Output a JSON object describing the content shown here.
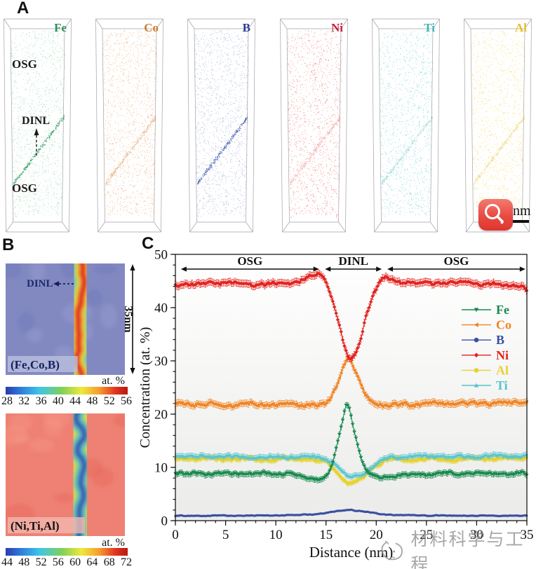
{
  "panel_a": {
    "letter": "A",
    "elements": [
      {
        "symbol": "Fe",
        "label_color": "#2f8f5b",
        "dot_color": "#8ed3aa",
        "band_color": "#1f9150",
        "band_opacity": 0.9
      },
      {
        "symbol": "Co",
        "label_color": "#cf7d2a",
        "dot_color": "#eba160",
        "band_color": "#d4761f",
        "band_opacity": 0.5
      },
      {
        "symbol": "B",
        "label_color": "#2c3c94",
        "dot_color": "#93a3d0",
        "band_color": "#2f4da5",
        "band_opacity": 0.9
      },
      {
        "symbol": "Ni",
        "label_color": "#c41f3a",
        "dot_color": "#ef6e68",
        "band_color": "#dd3a3a",
        "band_opacity": 0.35
      },
      {
        "symbol": "Ti",
        "label_color": "#3fb3b3",
        "dot_color": "#6fcdca",
        "band_color": "#2fa8a5",
        "band_opacity": 0.4
      },
      {
        "symbol": "Al",
        "label_color": "#e4bc2b",
        "dot_color": "#f4d757",
        "band_color": "#dfba22",
        "band_opacity": 0.5
      }
    ],
    "annotations": {
      "osg_top": "OSG",
      "dinl": "DINL",
      "osg_bottom": "OSG"
    },
    "scalebar_text": "50 nm"
  },
  "panel_b": {
    "letter": "B",
    "maps": [
      {
        "caption": "(Fe,Co,B)",
        "caption_color": "#16205e",
        "caption_bg": "#b9c0dd",
        "annotation": "DINL",
        "height_label": "35nm",
        "unit": "at. %",
        "ticks": [
          "28",
          "32",
          "36",
          "40",
          "44",
          "48",
          "52",
          "56"
        ],
        "bg": "#8289c1",
        "blob_dark": "#6b73b8",
        "blob_light": "#9aa0d0",
        "band_layers": [
          [
            "#5fc8d8",
            36
          ],
          [
            "#7cc96a",
            27
          ],
          [
            "#efe73e",
            19
          ],
          [
            "#f0872e",
            13
          ],
          [
            "#e03227",
            8
          ]
        ]
      },
      {
        "caption": "(Ni,Ti,Al)",
        "caption_color": "#131313",
        "caption_bg": "#f2b7ae",
        "unit": "at. %",
        "ticks": [
          "44",
          "48",
          "52",
          "56",
          "60",
          "64",
          "68",
          "72"
        ],
        "bg": "#ee8173",
        "blob_dark": "#e56553",
        "blob_light": "#f6998a",
        "band_layers": [
          [
            "#efe73e",
            31
          ],
          [
            "#7cc96a",
            23
          ],
          [
            "#56c4d4",
            15
          ],
          [
            "#3a55aa",
            8
          ]
        ]
      }
    ]
  },
  "panel_c": {
    "letter": "C"
  },
  "chart_data": {
    "type": "line",
    "xlabel": "Distance (nm)",
    "ylabel": "Concentration (at. %)",
    "xlim": [
      0,
      35
    ],
    "ylim": [
      0,
      50
    ],
    "x_major_ticks": [
      0,
      5,
      10,
      15,
      20,
      25,
      30,
      35
    ],
    "x_minor_step": 1,
    "y_major_ticks": [
      0,
      10,
      20,
      30,
      40,
      50
    ],
    "y_minor_step": 2,
    "grid": false,
    "regions": [
      {
        "label": "OSG",
        "from": 0.55,
        "to": 14.3
      },
      {
        "label": "DINL",
        "from": 14.9,
        "to": 20.55
      },
      {
        "label": "OSG",
        "from": 21.1,
        "to": 34.85
      }
    ],
    "legend": {
      "position": "right-center",
      "order": [
        "Fe",
        "Co",
        "B",
        "Ni",
        "Al",
        "Ti"
      ]
    },
    "draw_order": [
      "B",
      "Al",
      "Ti",
      "Fe",
      "Co",
      "Ni"
    ],
    "series": [
      {
        "name": "Fe",
        "color": "#17894e",
        "marker": "triangle-down",
        "marker_size": 2.8,
        "err": 0.5,
        "noise": 0.35,
        "anchors": [
          [
            0,
            8.8
          ],
          [
            11,
            8.8
          ],
          [
            12.5,
            8.1
          ],
          [
            14.5,
            7.7
          ],
          [
            15.2,
            8.6
          ],
          [
            15.8,
            11.5
          ],
          [
            16.4,
            16.5
          ],
          [
            17,
            22.2
          ],
          [
            17.3,
            21.5
          ],
          [
            17.8,
            17
          ],
          [
            18.4,
            12
          ],
          [
            19,
            9.4
          ],
          [
            19.6,
            8.2
          ],
          [
            21,
            8.1
          ],
          [
            22.5,
            8.5
          ],
          [
            26,
            8.8
          ],
          [
            35,
            8.8
          ]
        ]
      },
      {
        "name": "Co",
        "color": "#f08423",
        "marker": "triangle-left",
        "marker_size": 2.7,
        "err": 0.6,
        "noise": 0.45,
        "anchors": [
          [
            0,
            22
          ],
          [
            6,
            21.8
          ],
          [
            12,
            21.9
          ],
          [
            14.6,
            21.6
          ],
          [
            15.3,
            22.6
          ],
          [
            15.9,
            24.8
          ],
          [
            16.5,
            28
          ],
          [
            17,
            30.7
          ],
          [
            17.4,
            30.3
          ],
          [
            17.9,
            27.8
          ],
          [
            18.5,
            25
          ],
          [
            19.3,
            22.8
          ],
          [
            20.2,
            21.7
          ],
          [
            21.5,
            21.7
          ],
          [
            26,
            22
          ],
          [
            35,
            22.1
          ]
        ]
      },
      {
        "name": "B",
        "color": "#3b4fa2",
        "marker": "circle",
        "marker_size": 1.7,
        "err": 0.12,
        "noise": 0.1,
        "anchors": [
          [
            0,
            0.9
          ],
          [
            8,
            0.95
          ],
          [
            12,
            1.05
          ],
          [
            14,
            1.2
          ],
          [
            15.5,
            1.55
          ],
          [
            16.5,
            1.9
          ],
          [
            17.3,
            2.05
          ],
          [
            18.3,
            1.85
          ],
          [
            19.5,
            1.5
          ],
          [
            21,
            1.15
          ],
          [
            23,
            1
          ],
          [
            30,
            0.9
          ],
          [
            35,
            0.95
          ]
        ]
      },
      {
        "name": "Ni",
        "color": "#e2231f",
        "marker": "diamond",
        "marker_size": 2.7,
        "err": 0.65,
        "noise": 0.5,
        "anchors": [
          [
            0,
            44.4
          ],
          [
            5,
            44.6
          ],
          [
            10,
            44.4
          ],
          [
            12.8,
            45
          ],
          [
            13.6,
            46.1
          ],
          [
            14.6,
            46.3
          ],
          [
            15.1,
            44.6
          ],
          [
            15.6,
            42
          ],
          [
            16.2,
            37.5
          ],
          [
            16.7,
            33.5
          ],
          [
            17.1,
            30.8
          ],
          [
            17.5,
            29.8
          ],
          [
            17.9,
            31
          ],
          [
            18.4,
            34
          ],
          [
            19,
            38.5
          ],
          [
            19.6,
            42
          ],
          [
            20.2,
            44.6
          ],
          [
            20.8,
            45.6
          ],
          [
            21.6,
            45.2
          ],
          [
            23,
            44.8
          ],
          [
            28,
            44.6
          ],
          [
            33,
            44.4
          ],
          [
            34.4,
            44.2
          ],
          [
            35,
            43.2
          ]
        ]
      },
      {
        "name": "Al",
        "color": "#e6d22e",
        "marker": "circle",
        "marker_size": 2.2,
        "err": 0.45,
        "noise": 0.38,
        "anchors": [
          [
            0,
            11.6
          ],
          [
            8,
            11.5
          ],
          [
            13,
            11.6
          ],
          [
            14.8,
            11.3
          ],
          [
            15.6,
            10.2
          ],
          [
            16.3,
            8.6
          ],
          [
            17,
            7.2
          ],
          [
            17.5,
            6.9
          ],
          [
            18.2,
            7.4
          ],
          [
            19,
            8.6
          ],
          [
            19.8,
            10.2
          ],
          [
            20.7,
            11.2
          ],
          [
            22,
            11.5
          ],
          [
            30,
            11.6
          ],
          [
            35,
            11.7
          ]
        ]
      },
      {
        "name": "Ti",
        "color": "#55c4cf",
        "marker": "triangle-up",
        "marker_size": 2.5,
        "err": 0.45,
        "noise": 0.35,
        "anchors": [
          [
            0,
            12.1
          ],
          [
            8,
            12
          ],
          [
            13,
            12.1
          ],
          [
            15,
            11.7
          ],
          [
            15.8,
            10.7
          ],
          [
            16.5,
            9.4
          ],
          [
            17.2,
            8.4
          ],
          [
            17.8,
            8.3
          ],
          [
            18.6,
            8.9
          ],
          [
            19.4,
            9.9
          ],
          [
            20.2,
            11
          ],
          [
            21.2,
            11.9
          ],
          [
            23,
            12.1
          ],
          [
            30,
            12.1
          ],
          [
            35,
            12.3
          ]
        ]
      }
    ]
  },
  "watermark": {
    "text": "材料科学与工程"
  }
}
